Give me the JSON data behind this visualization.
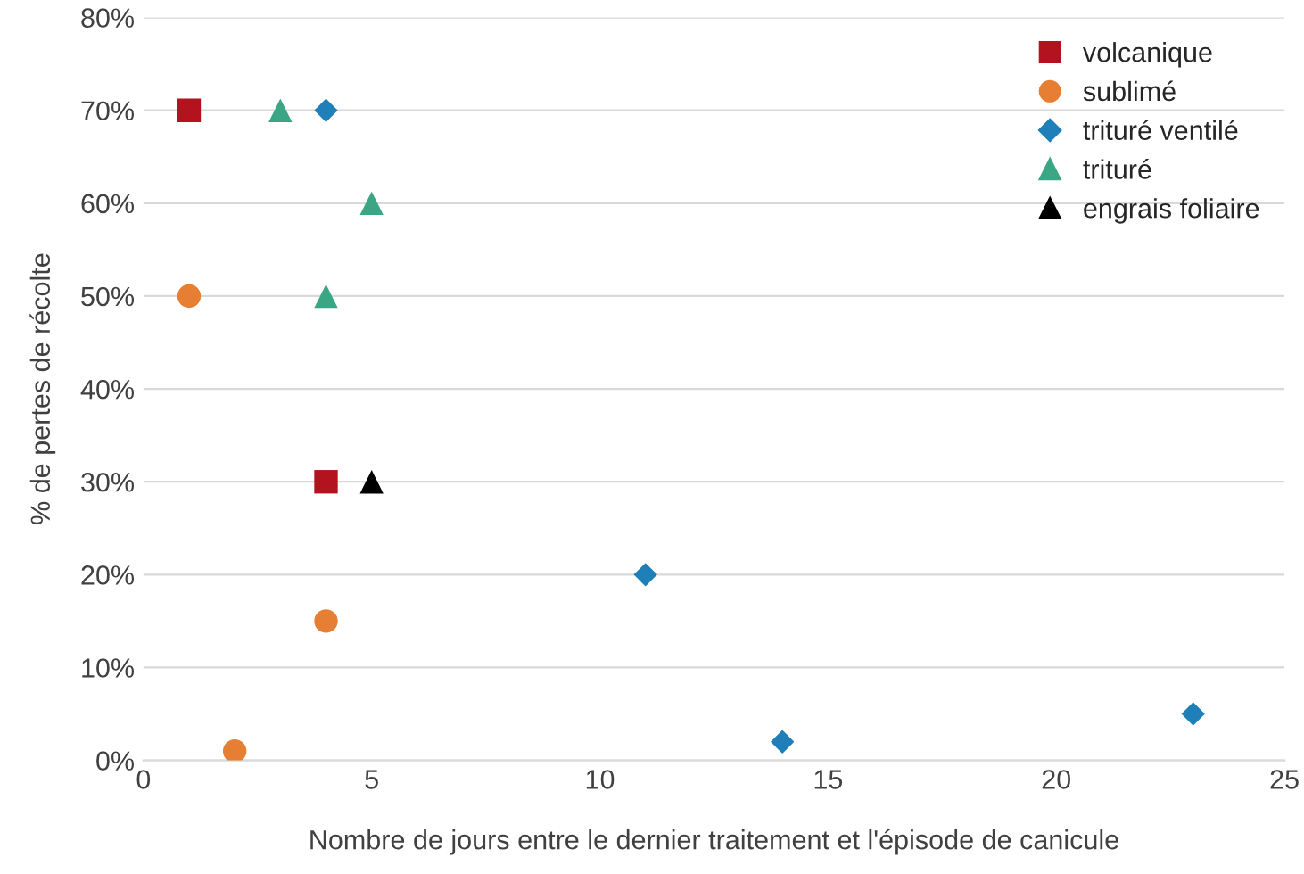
{
  "chart_data": {
    "type": "scatter",
    "xlabel": "Nombre de jours entre le dernier traitement et l'épisode de canicule",
    "ylabel": "% de pertes de récolte",
    "xlim": [
      0,
      25
    ],
    "xticks": [
      0,
      5,
      10,
      15,
      20,
      25
    ],
    "ylim": [
      0,
      80
    ],
    "yticks": [
      {
        "value": 0,
        "label": "0%"
      },
      {
        "value": 10,
        "label": "10%"
      },
      {
        "value": 20,
        "label": "20%"
      },
      {
        "value": 30,
        "label": "30%"
      },
      {
        "value": 40,
        "label": "40%"
      },
      {
        "value": 50,
        "label": "50%"
      },
      {
        "value": 60,
        "label": "60%"
      },
      {
        "value": 70,
        "label": "70%"
      },
      {
        "value": 80,
        "label": "80%"
      }
    ],
    "grid": "y",
    "legend": "top right",
    "series": [
      {
        "name": "volcanique",
        "color": "#b3121f",
        "marker": "square",
        "x": [
          1,
          4
        ],
        "values": [
          70,
          30
        ]
      },
      {
        "name": "sublimé",
        "color": "#e67e33",
        "marker": "circle",
        "x": [
          1,
          4,
          2
        ],
        "values": [
          50,
          15,
          1
        ]
      },
      {
        "name": "trituré ventilé",
        "color": "#1f7fb8",
        "marker": "diamond",
        "x": [
          4,
          11,
          14,
          23
        ],
        "values": [
          70,
          20,
          2,
          5
        ]
      },
      {
        "name": "trituré",
        "color": "#3aa683",
        "marker": "triangle",
        "x": [
          3,
          5,
          4
        ],
        "values": [
          70,
          60,
          50
        ]
      },
      {
        "name": "engrais foliaire",
        "color": "#000000",
        "marker": "triangle",
        "x": [
          5
        ],
        "values": [
          30
        ]
      }
    ]
  }
}
